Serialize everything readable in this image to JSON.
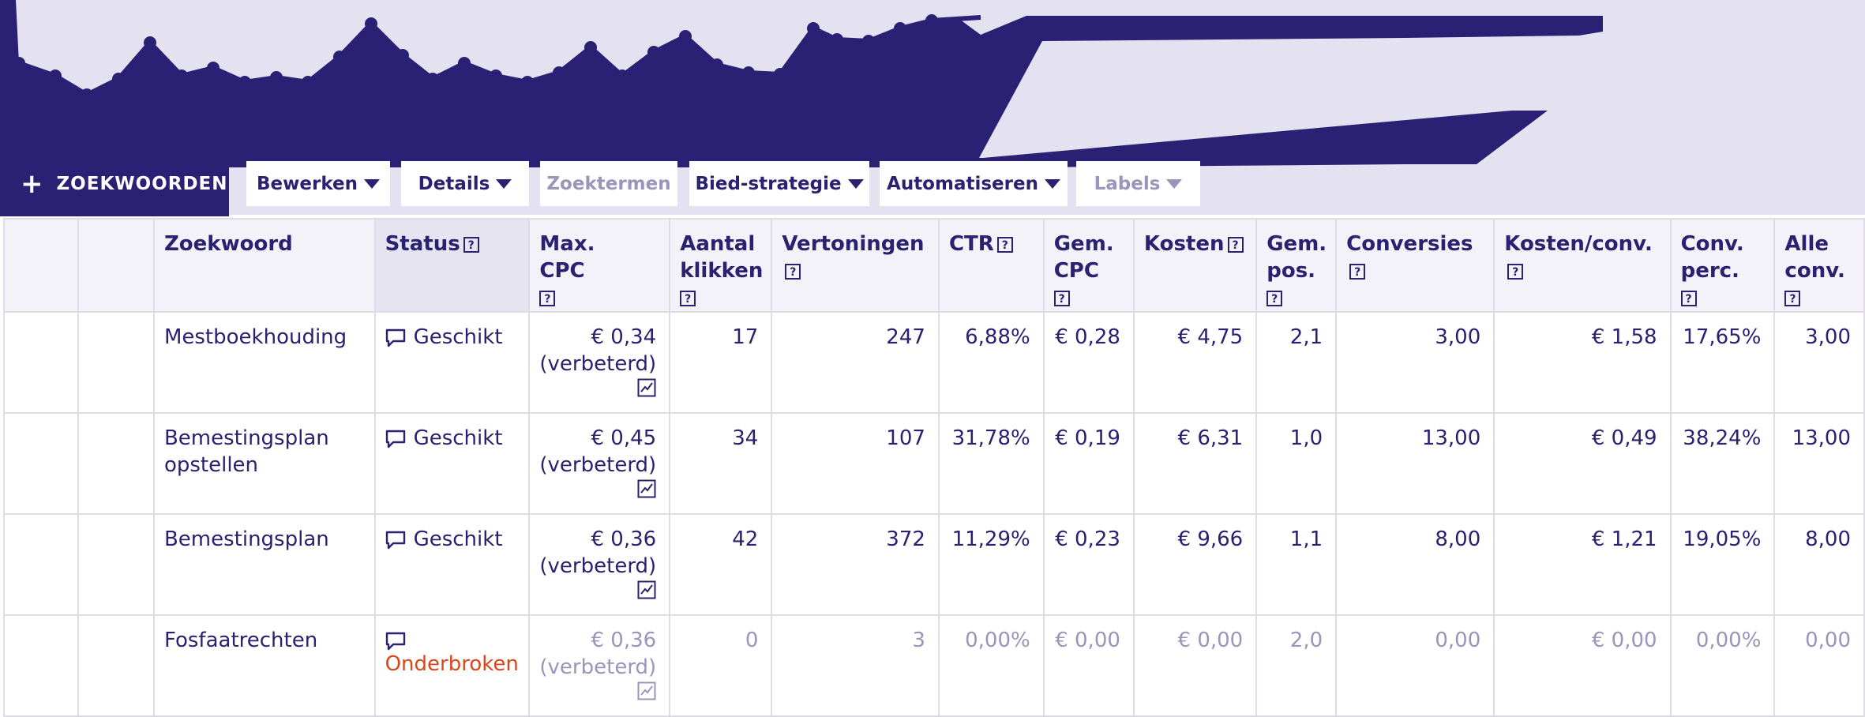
{
  "toolbar": {
    "add_keywords": "ZOEKWOORDEN",
    "buttons": [
      {
        "label": "Bewerken",
        "dropdown": true,
        "enabled": true
      },
      {
        "label": "Details",
        "dropdown": true,
        "enabled": true
      },
      {
        "label": "Zoektermen",
        "dropdown": false,
        "enabled": false
      },
      {
        "label": "Bied-strategie",
        "dropdown": true,
        "enabled": true
      },
      {
        "label": "Automatiseren",
        "dropdown": true,
        "enabled": true
      },
      {
        "label": "Labels",
        "dropdown": true,
        "enabled": false
      }
    ]
  },
  "colors": {
    "brand": "#2a2175",
    "chart_bg": "#e4e1f0",
    "header_bg": "#f3f2f8",
    "paused": "#d9481c",
    "muted": "#9a95b9"
  },
  "table": {
    "headers": {
      "keyword": "Zoekwoord",
      "status": "Status",
      "max_cpc_1": "Max.",
      "max_cpc_2": "CPC",
      "clicks_1": "Aantal",
      "clicks_2": "klikken",
      "impressions": "Vertoningen",
      "ctr": "CTR",
      "avg_cpc_1": "Gem.",
      "avg_cpc_2": "CPC",
      "cost": "Kosten",
      "avg_pos_1": "Gem.",
      "avg_pos_2": "pos.",
      "conversions": "Conversies",
      "cost_conv": "Kosten/conv.",
      "conv_rate_1": "Conv.",
      "conv_rate_2": "perc.",
      "all_conv_1": "Alle",
      "all_conv_2": "conv.",
      "help": "?"
    },
    "rows": [
      {
        "keyword": "Mestboekhouding",
        "status": "Geschikt",
        "max_cpc": "€ 0,34",
        "max_cpc_note": "(verbeterd)",
        "clicks": "17",
        "impressions": "247",
        "ctr": "6,88%",
        "avg_cpc": "€ 0,28",
        "cost": "€ 4,75",
        "avg_pos": "2,1",
        "conversions": "3,00",
        "cost_conv": "€ 1,58",
        "conv_rate": "17,65%",
        "all_conv": "3,00"
      },
      {
        "keyword": "Bemestingsplan opstellen",
        "status": "Geschikt",
        "max_cpc": "€ 0,45",
        "max_cpc_note": "(verbeterd)",
        "clicks": "34",
        "impressions": "107",
        "ctr": "31,78%",
        "avg_cpc": "€ 0,19",
        "cost": "€ 6,31",
        "avg_pos": "1,0",
        "conversions": "13,00",
        "cost_conv": "€ 0,49",
        "conv_rate": "38,24%",
        "all_conv": "13,00"
      },
      {
        "keyword": "Bemestingsplan",
        "status": "Geschikt",
        "max_cpc": "€ 0,36",
        "max_cpc_note": "(verbeterd)",
        "clicks": "42",
        "impressions": "372",
        "ctr": "11,29%",
        "avg_cpc": "€ 0,23",
        "cost": "€ 9,66",
        "avg_pos": "1,1",
        "conversions": "8,00",
        "cost_conv": "€ 1,21",
        "conv_rate": "19,05%",
        "all_conv": "8,00"
      },
      {
        "keyword": "Fosfaatrechten",
        "status": "Onderbroken",
        "max_cpc": "€ 0,36",
        "max_cpc_note": "(verbeterd)",
        "clicks": "0",
        "impressions": "3",
        "ctr": "0,00%",
        "avg_cpc": "€ 0,00",
        "cost": "€ 0,00",
        "avg_pos": "2,0",
        "conversions": "0,00",
        "cost_conv": "€ 0,00",
        "conv_rate": "0,00%",
        "all_conv": "0,00"
      }
    ]
  }
}
